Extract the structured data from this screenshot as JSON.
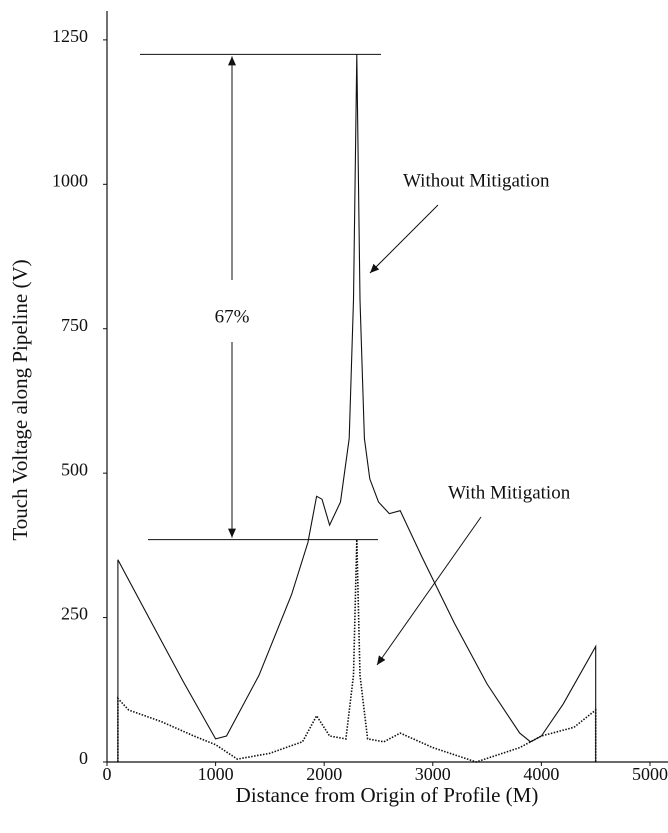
{
  "chart_data": {
    "type": "line",
    "x_label": "Distance from Origin of Profile (M)",
    "y_label": "Touch Voltage along Pipeline (V)",
    "xlim": [
      0,
      5166
    ],
    "xticks": [
      0,
      1000,
      2000,
      3000,
      4000,
      5000
    ],
    "ylim": [
      0,
      1300
    ],
    "yticks": [
      0,
      250,
      500,
      750,
      1000,
      1250
    ],
    "annotations": [
      "Without Mitigation",
      "With Mitigation",
      "67%"
    ],
    "series": [
      {
        "name": "Without Mitigation",
        "color": "#111111",
        "line_style": "solid",
        "x": [
          100,
          100,
          400,
          700,
          1000,
          1100,
          1400,
          1700,
          1850,
          1930,
          1980,
          2050,
          2150,
          2230,
          2270,
          2300,
          2330,
          2370,
          2420,
          2500,
          2600,
          2700,
          2900,
          3200,
          3500,
          3800,
          3900,
          4000,
          4200,
          4500,
          4500
        ],
        "values": [
          0,
          350,
          245,
          140,
          40,
          45,
          150,
          290,
          380,
          460,
          455,
          410,
          450,
          560,
          800,
          1225,
          800,
          560,
          490,
          450,
          430,
          435,
          355,
          240,
          135,
          50,
          35,
          45,
          100,
          200,
          0
        ]
      },
      {
        "name": "With Mitigation",
        "color": "#111111",
        "line_style": "dotted",
        "x": [
          100,
          100,
          200,
          500,
          800,
          1000,
          1200,
          1500,
          1800,
          1930,
          2050,
          2200,
          2270,
          2300,
          2330,
          2400,
          2550,
          2700,
          3000,
          3400,
          3800,
          4000,
          4300,
          4500,
          4500
        ],
        "values": [
          0,
          110,
          90,
          70,
          45,
          30,
          5,
          15,
          35,
          80,
          45,
          40,
          150,
          385,
          150,
          40,
          35,
          50,
          25,
          0,
          25,
          45,
          60,
          90,
          0
        ]
      }
    ]
  }
}
